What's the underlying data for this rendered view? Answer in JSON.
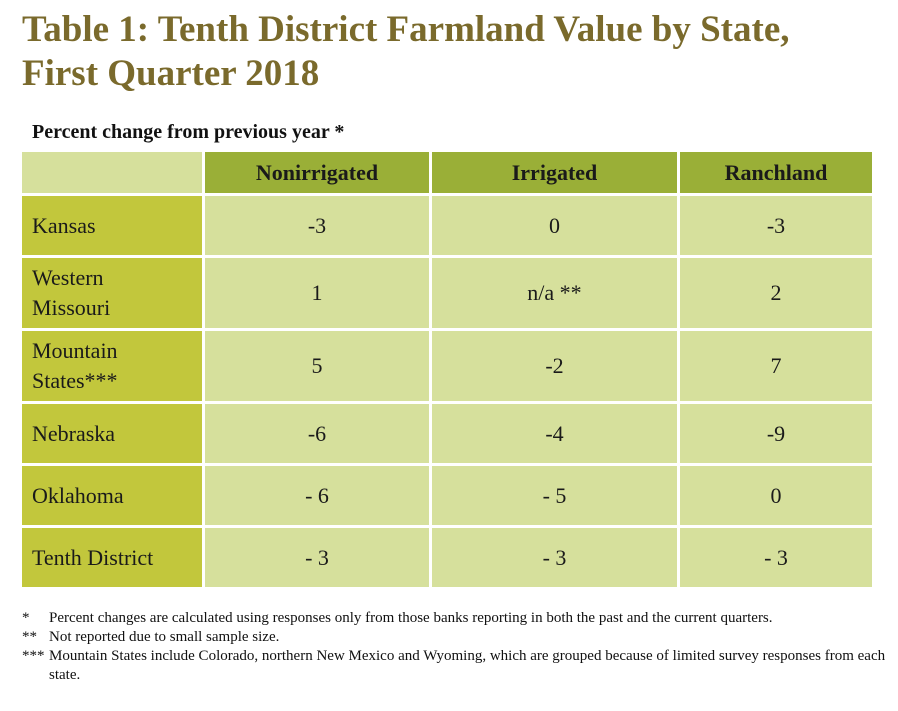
{
  "title_line1": "Table 1: Tenth District Farmland Value by State,",
  "title_line2": "First Quarter 2018",
  "subtitle": "Percent change from previous year *",
  "chart_data": {
    "type": "table",
    "columns": [
      "Nonirrigated",
      "Irrigated",
      "Ranchland"
    ],
    "rows": [
      {
        "label_lines": [
          "Kansas"
        ],
        "values": [
          "-3",
          "0",
          "-3"
        ]
      },
      {
        "label_lines": [
          "Western",
          "Missouri"
        ],
        "values": [
          "1",
          "n/a **",
          "2"
        ]
      },
      {
        "label_lines": [
          "Mountain",
          "States***"
        ],
        "values": [
          "5",
          "-2",
          "7"
        ]
      },
      {
        "label_lines": [
          "Nebraska"
        ],
        "values": [
          "-6",
          "-4",
          "-9"
        ]
      },
      {
        "label_lines": [
          "Oklahoma"
        ],
        "values": [
          "- 6",
          "- 5",
          "0"
        ]
      },
      {
        "label_lines": [
          "Tenth District"
        ],
        "values": [
          "- 3",
          "- 3",
          "- 3"
        ]
      }
    ]
  },
  "footnotes": [
    {
      "marker": "*",
      "text": "Percent changes are calculated using responses only from those banks reporting in both the past and the current quarters."
    },
    {
      "marker": "**",
      "text": "Not reported due to small sample size."
    },
    {
      "marker": "***",
      "text": "Mountain States include Colorado, northern New Mexico and Wyoming, which are grouped because of limited survey responses from each state."
    }
  ],
  "colors": {
    "title": "#7a6a2c",
    "header": "#9aaf37",
    "row_header": "#c2c73c",
    "cell": "#d6e09c"
  }
}
